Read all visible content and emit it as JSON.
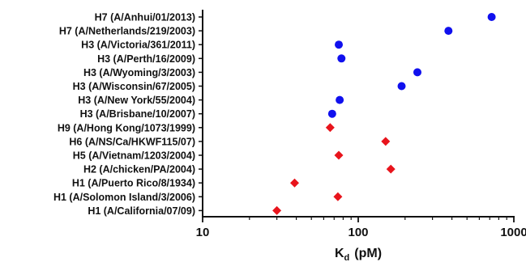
{
  "chart_data": {
    "type": "scatter",
    "x_scale": "log",
    "xlim": [
      10,
      1000
    ],
    "x_ticks": [
      10,
      100,
      1000
    ],
    "x_tick_labels": [
      "10",
      "100",
      "1000"
    ],
    "xlabel": {
      "main": "K",
      "sub": "d",
      "unit": "(pM)"
    },
    "ylabel": "",
    "title": "",
    "grid": false,
    "categories": [
      "H7 (A/Anhui/01/2013)",
      "H7 (A/Netherlands/219/2003)",
      "H3 (A/Victoria/361/2011)",
      "H3 (A/Perth/16/2009)",
      "H3 (A/Wyoming/3/2003)",
      "H3 (A/Wisconsin/67/2005)",
      "H3 (A/New York/55/2004)",
      "H3 (A/Brisbane/10/2007)",
      "H9 (A/Hong Kong/1073/1999)",
      "H6 (A/NS/Ca/HKWF115/07)",
      "H5 (A/Vietnam/1203/2004)",
      "H2 (A/chicken/PA/2004)",
      "H1 (A/Puerto Rico/8/1934)",
      "H1 (A/Solomon Island/3/2006)",
      "H1 (A/California/07/09)"
    ],
    "series": [
      {
        "marker": "circle",
        "color": "#1010ee",
        "points": [
          {
            "category": "H7 (A/Anhui/01/2013)",
            "x": 720
          },
          {
            "category": "H7 (A/Netherlands/219/2003)",
            "x": 380
          },
          {
            "category": "H3 (A/Victoria/361/2011)",
            "x": 75
          },
          {
            "category": "H3 (A/Perth/16/2009)",
            "x": 78
          },
          {
            "category": "H3 (A/Wyoming/3/2003)",
            "x": 240
          },
          {
            "category": "H3 (A/Wisconsin/67/2005)",
            "x": 190
          },
          {
            "category": "H3 (A/New York/55/2004)",
            "x": 76
          },
          {
            "category": "H3 (A/Brisbane/10/2007)",
            "x": 68
          }
        ]
      },
      {
        "marker": "diamond",
        "color": "#e8141c",
        "points": [
          {
            "category": "H9 (A/Hong Kong/1073/1999)",
            "x": 66
          },
          {
            "category": "H6 (A/NS/Ca/HKWF115/07)",
            "x": 150
          },
          {
            "category": "H5 (A/Vietnam/1203/2004)",
            "x": 75
          },
          {
            "category": "H2 (A/chicken/PA/2004)",
            "x": 162
          },
          {
            "category": "H1 (A/Puerto Rico/8/1934)",
            "x": 39
          },
          {
            "category": "H1 (A/Solomon Island/3/2006)",
            "x": 74
          },
          {
            "category": "H1 (A/California/07/09)",
            "x": 30
          }
        ]
      }
    ]
  }
}
